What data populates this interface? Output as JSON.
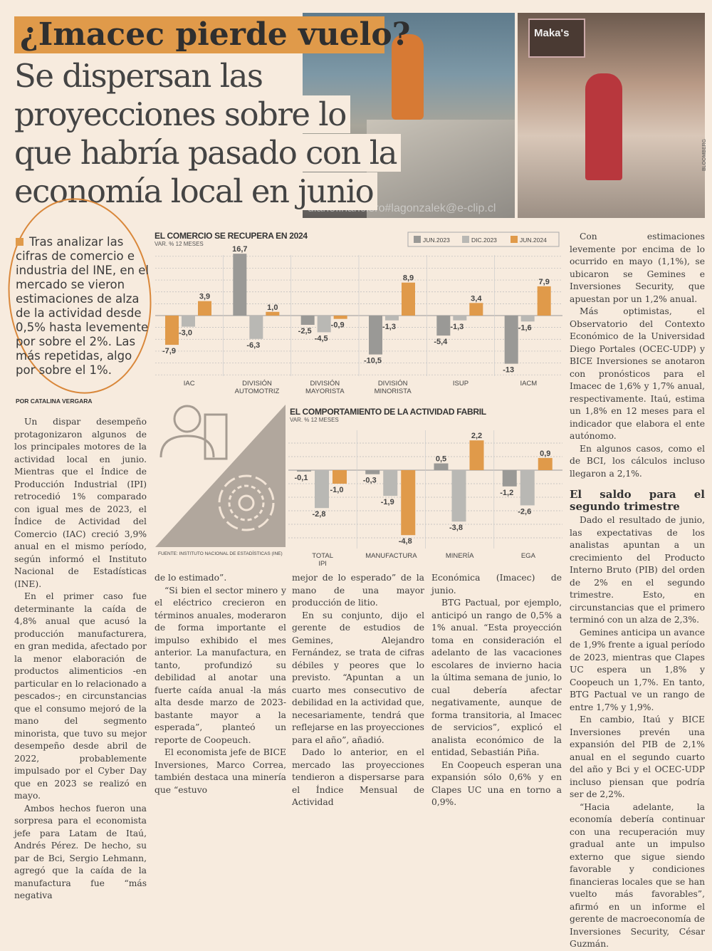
{
  "article": {
    "kicker": "¿Imacec pierde vuelo?",
    "headline_lines": [
      "Se dispersan las",
      "proyecciones sobre lo",
      "que habría pasado con la",
      "economía local en junio"
    ],
    "lede": "Tras analizar las cifras de comercio e industria del INE, en el mercado se vieron estimaciones de alza de la actividad desde 0,5% hasta levemente por sobre el 2%. Las más repetidas, algo por sobre el 1%.",
    "byline": "POR CATALINA VERGARA",
    "photo_credit": "BLOOMBERG",
    "photo_sign": "Maka's",
    "col1": [
      "Un dispar desempeño protagonizaron algunos de los principales motores de la actividad local en junio. Mientras que el Índice de Producción Industrial (IPI) retrocedió 1% comparado con igual mes de 2023, el Índice de Actividad del Comercio (IAC) creció 3,9% anual en el mismo período, según informó el Instituto Nacional de Estadísticas (INE).",
      "En el primer caso fue determinante la caída de 4,8% anual que acusó la producción manufacturera, en gran medida, afectado por la menor elaboración de productos alimenticios -en particular en lo relacionado a pescados-; en circunstancias que el consumo mejoró de la mano del segmento minorista, que tuvo su mejor desempeño desde abril de 2022, probablemente impulsado por el Cyber Day que en 2023 se realizó en mayo.",
      "Ambos hechos fueron una sorpresa para el economista jefe para Latam de Itaú, Andrés Pérez. De hecho, su par de Bci, Sergio Lehmann, agregó que la caída de la manufactura fue “más negativa"
    ],
    "col2": [
      "de lo estimado”.",
      "“Si bien el sector minero y el eléctrico crecieron en términos anuales, moderaron de forma importante el impulso exhibido el mes anterior. La manufactura, en tanto, profundizó su debilidad al anotar una fuerte caída anual -la más alta desde marzo de 2023- bastante mayor a la esperada”, planteó un reporte de Coopeuch.",
      "El economista jefe de BICE Inversiones, Marco Correa, también destaca una minería que “estuvo"
    ],
    "col3": [
      "mejor de lo esperado” de la mano de una mayor producción de litio.",
      "En su conjunto, dijo el gerente de estudios de Gemines, Alejandro Fernández, se trata de cifras débiles y peores que lo previsto. “Apuntan a un cuarto mes consecutivo de debilidad en la actividad que, necesariamente, tendrá que reflejarse en las proyecciones para el año”, añadió.",
      "Dado lo anterior, en el mercado las proyecciones tendieron a dispersarse para el Índice Mensual de Actividad"
    ],
    "col4": [
      "Económica (Imacec) de junio.",
      "BTG Pactual, por ejemplo, anticipó un rango de 0,5% a 1% anual. “Esta proyección toma en consideración el adelanto de las vacaciones escolares de invierno hacia la última semana de junio, lo cual debería afectar negativamente, aunque de forma transitoria, al Imacec de servicios”, explicó el analista económico de la entidad, Sebastián Piña.",
      "En Coopeuch esperan una expansión sólo 0,6% y en Clapes UC una en torno a 0,9%."
    ],
    "col5a": [
      "Con estimaciones levemente por encima de lo ocurrido en mayo (1,1%), se ubicaron se Gemines e Inversiones Security, que apuestan por un 1,2% anual.",
      "Más optimistas, el Observatorio del Contexto Económico de la Universidad Diego Portales (OCEC-UDP) y BICE Inversiones se anotaron con pronósticos para el Imacec de 1,6% y 1,7% anual, respectivamente. Itaú, estima un 1,8% en 12 meses para el indicador que elabora el ente autónomo.",
      "En algunos casos, como el de BCI, los cálculos incluso llegaron a 2,1%."
    ],
    "subhead": "El saldo para el segundo trimestre",
    "col5b": [
      "Dado el resultado de junio, las expectativas de los analistas apuntan a un crecimiento del Producto Interno Bruto (PIB) del orden de 2% en el segundo trimestre. Esto, en circunstancias que el primero terminó con un alza de 2,3%.",
      "Gemines anticipa un avance de 1,9% frente a igual período de 2023, mientras que Clapes UC espera un 1,8% y Coopeuch un 1,7%. En tanto, BTG Pactual ve un rango de entre 1,7% y 1,9%.",
      "En cambio, Itaú y BICE Inversiones prevén una expansión del PIB de 2,1% anual en el segundo cuarto del año y Bci y el OCEC-UDP incluso piensan que podría ser de 2,2%.",
      "“Hacia adelante, la economía debería continuar con una recuperación muy gradual ante un impulso externo que sigue siendo favorable y condiciones financieras locales que se han vuelto más favorables”, afirmó en un informe el gerente de macroeconomía de Inversiones Security, César Guzmán."
    ],
    "watermark": "diariofinanciero#lagonzalek@e-clip.cl",
    "source": "FUENTE: INSTITUTO NACIONAL DE ESTADÍSTICAS (INE)"
  },
  "colors": {
    "jun2023": "#9a9996",
    "dic2023": "#b9b8b4",
    "jun2024": "#e09a4a",
    "background": "#f7ebde"
  },
  "chart_data": [
    {
      "type": "bar",
      "title": "EL COMERCIO SE RECUPERA EN 2024",
      "subtitle": "VAR. % 12 MESES",
      "categories": [
        "IAC",
        "DIVISIÓN AUTOMOTRIZ",
        "DIVISIÓN MAYORISTA",
        "DIVISIÓN MINORISTA",
        "ISUP",
        "IACM"
      ],
      "series": [
        {
          "name": "JUN.2023",
          "values": [
            -7.9,
            16.7,
            -2.5,
            -10.5,
            -5.4,
            -13
          ]
        },
        {
          "name": "DIC.2023",
          "values": [
            -3.0,
            -6.3,
            -4.5,
            -1.3,
            -1.3,
            -1.6
          ]
        },
        {
          "name": "JUN.2024",
          "values": [
            3.9,
            1.0,
            -0.9,
            8.9,
            3.4,
            7.9
          ]
        }
      ],
      "labels": [
        [
          "-7,9",
          "16,7",
          "-2,5",
          "-10,5",
          "-5,4",
          "-13"
        ],
        [
          "-3,0",
          "-6,3",
          "-4,5",
          "-1,3",
          "-1,3",
          "-1,6"
        ],
        [
          "3,9",
          "1,0",
          "-0,9",
          "8,9",
          "3,4",
          "7,9"
        ]
      ],
      "legend": "top-right",
      "grid": true,
      "ylim": [
        -13,
        17
      ]
    },
    {
      "type": "bar",
      "title": "EL COMPORTAMIENTO DE LA ACTIVIDAD FABRIL",
      "subtitle": "VAR. % 12 MESES",
      "categories": [
        "TOTAL IPI",
        "MANUFACTURA",
        "MINERÍA",
        "EGA"
      ],
      "series": [
        {
          "name": "JUN.2023",
          "values": [
            -0.1,
            -0.3,
            0.5,
            -1.2
          ]
        },
        {
          "name": "DIC.2023",
          "values": [
            -2.8,
            -1.9,
            -3.8,
            -2.6
          ]
        },
        {
          "name": "JUN.2024",
          "values": [
            -1.0,
            -4.8,
            2.2,
            0.9
          ]
        }
      ],
      "labels": [
        [
          "-0,1",
          "-0,3",
          "0,5",
          "-1,2"
        ],
        [
          "-2,8",
          "-1,9",
          "-3,8",
          "-2,6"
        ],
        [
          "-1,0",
          "-4,8",
          "2,2",
          "0,9"
        ]
      ],
      "grid": true,
      "ylim": [
        -5,
        3
      ]
    }
  ]
}
